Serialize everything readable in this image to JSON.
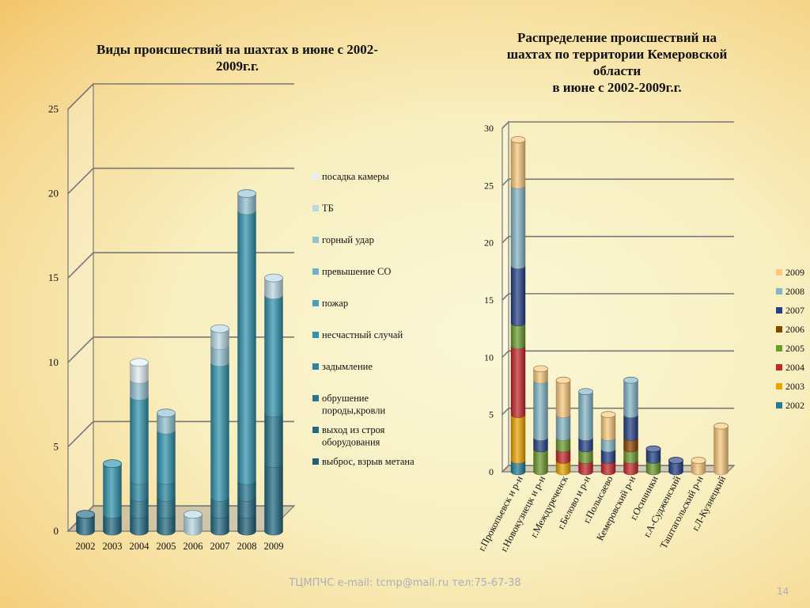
{
  "slide": {
    "title_left": "Виды происшествий на шахтах в июне с 2002-2009г.г.",
    "title_right_lines": [
      "Распределение происшествий на",
      "шахтах по территории Кемеровской",
      "области",
      "в июне с 2002-2009г.г."
    ],
    "footer": "ТЦМПЧС e-mail: tcmp@mail.ru тел:75-67-38",
    "slide_number": "14"
  },
  "chart_data": [
    {
      "type": "bar",
      "stacked": true,
      "title": "Виды происшествий на шахтах в июне с 2002-2009г.г.",
      "categories": [
        "2002",
        "2003",
        "2004",
        "2005",
        "2006",
        "2007",
        "2008",
        "2009"
      ],
      "ylim": [
        0,
        25
      ],
      "yticks": [
        0,
        5,
        10,
        15,
        20,
        25
      ],
      "grid": true,
      "legend_position": "right",
      "series": [
        {
          "name": "выброс, взрыв метана",
          "color": "#1f5f78",
          "values": [
            0,
            0,
            0,
            0,
            0,
            0,
            1,
            0
          ]
        },
        {
          "name": "выход из строя оборудования",
          "color": "#226a84",
          "values": [
            1,
            1,
            1,
            1,
            0,
            1,
            1,
            4
          ]
        },
        {
          "name": "обрушение породы,кровли",
          "color": "#26768f",
          "values": [
            0,
            0,
            1,
            1,
            0,
            1,
            1,
            3
          ]
        },
        {
          "name": "задымление",
          "color": "#2b85a0",
          "values": [
            0,
            0,
            1,
            1,
            0,
            0,
            0,
            0
          ]
        },
        {
          "name": "несчастный случай",
          "color": "#3192ad",
          "values": [
            0,
            3,
            5,
            3,
            0,
            8,
            16,
            7
          ]
        },
        {
          "name": "пожар",
          "color": "#4c9fb9",
          "values": [
            0,
            0,
            0,
            0,
            0,
            0,
            0,
            0
          ]
        },
        {
          "name": "превышение СО",
          "color": "#6fb0c7",
          "values": [
            0,
            0,
            0,
            0,
            0,
            0,
            0,
            0
          ]
        },
        {
          "name": "горный удар",
          "color": "#91c1d3",
          "values": [
            0,
            0,
            1,
            1,
            0,
            1,
            1,
            0
          ]
        },
        {
          "name": "ТБ",
          "color": "#b9d8e4",
          "values": [
            0,
            0,
            0,
            0,
            1,
            1,
            0,
            1
          ]
        },
        {
          "name": "посадка камеры",
          "color": "#e2eff4",
          "values": [
            0,
            0,
            1,
            0,
            0,
            0,
            0,
            0
          ]
        }
      ]
    },
    {
      "type": "bar",
      "stacked": true,
      "title": "Распределение происшествий на шахтах по территории Кемеровской области в июне с 2002-2009г.г.",
      "categories": [
        "г.Прокопьевск и р-н",
        "г.Новокузнецк и р-н",
        "г.Междуреченск",
        "г.Белово и р-н",
        "г.Полысаево",
        "Кемеровский р-н",
        "г.Осинники",
        "г.А-Судженский",
        "Таштагольский р-н",
        "г.Л-Кузнецкий"
      ],
      "ylim": [
        0,
        30
      ],
      "yticks": [
        0,
        5,
        10,
        15,
        20,
        25,
        30
      ],
      "grid": true,
      "legend_position": "right",
      "series": [
        {
          "name": "2002",
          "color": "#237d96",
          "values": [
            1,
            0,
            0,
            0,
            0,
            0,
            0,
            0,
            0,
            0
          ]
        },
        {
          "name": "2003",
          "color": "#e8a500",
          "values": [
            4,
            0,
            1,
            0,
            0,
            0,
            0,
            0,
            0,
            0
          ]
        },
        {
          "name": "2004",
          "color": "#c3262b",
          "values": [
            6,
            0,
            1,
            1,
            1,
            1,
            0,
            0,
            0,
            0
          ]
        },
        {
          "name": "2005",
          "color": "#6c9a2c",
          "values": [
            2,
            2,
            1,
            1,
            0,
            1,
            1,
            0,
            0,
            0
          ]
        },
        {
          "name": "2006",
          "color": "#8a4200",
          "values": [
            0,
            0,
            0,
            0,
            0,
            1,
            0,
            0,
            0,
            0
          ]
        },
        {
          "name": "2007",
          "color": "#253f85",
          "values": [
            5,
            1,
            0,
            1,
            1,
            2,
            1,
            1,
            0,
            0
          ]
        },
        {
          "name": "2008",
          "color": "#82b5c6",
          "values": [
            7,
            5,
            2,
            4,
            1,
            3,
            0,
            0,
            0,
            0
          ]
        },
        {
          "name": "2009",
          "color": "#f8c87c",
          "values": [
            4,
            1,
            3,
            0,
            2,
            0,
            0,
            0,
            1,
            4
          ]
        }
      ]
    }
  ]
}
